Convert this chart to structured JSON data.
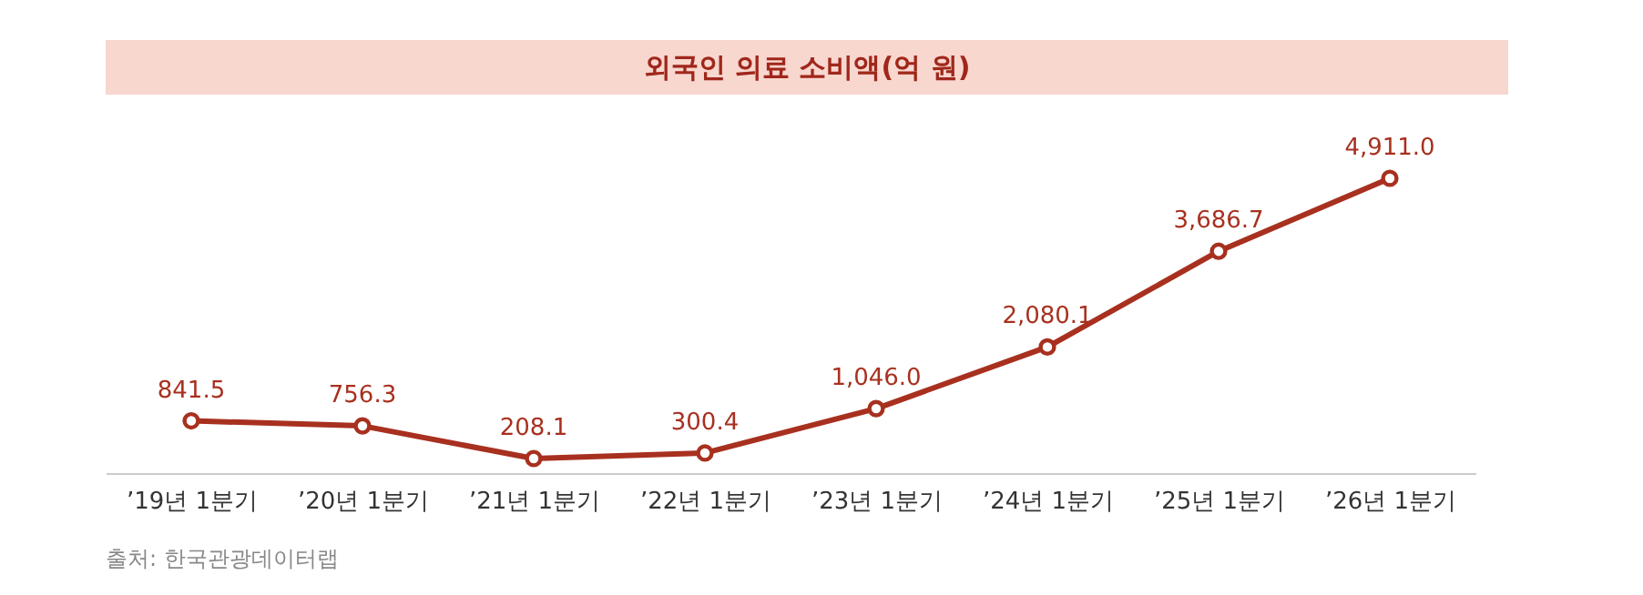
{
  "chart_data": {
    "type": "line",
    "title": "외국인 의료 소비액(억 원)",
    "categories": [
      "’19년 1분기",
      "’20년 1분기",
      "’21년 1분기",
      "’22년 1분기",
      "’23년 1분기",
      "’24년 1분기",
      "’25년 1분기",
      "’26년 1분기"
    ],
    "series": [
      {
        "color": "#a8301f",
        "values": [
          841.5,
          756.3,
          208.1,
          300.4,
          1046.0,
          2080.1,
          3686.7,
          4911.0
        ],
        "value_labels": [
          "841.5",
          "756.3",
          "208.1",
          "300.4",
          "1,046.0",
          "2,080.1",
          "3,686.7",
          "4,911.0"
        ]
      }
    ],
    "marker": "circle",
    "grid": false,
    "legend": false,
    "annotations": [
      "출처: 한국관광데이터랩"
    ]
  }
}
